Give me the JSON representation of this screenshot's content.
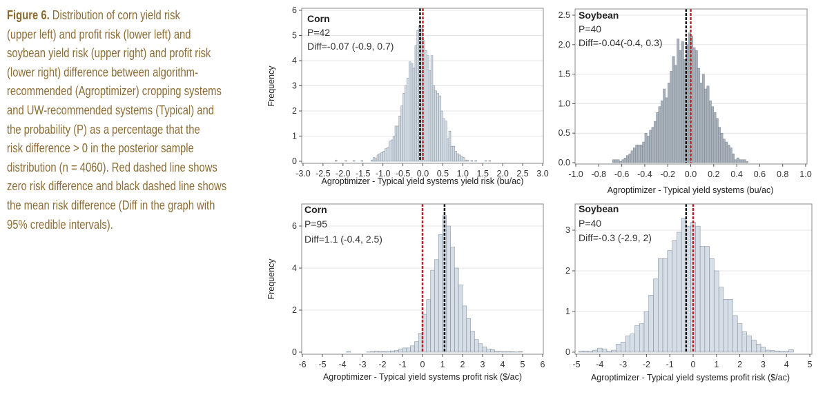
{
  "caption": {
    "label": "Figure 6.",
    "lines": [
      "Distribution of corn yield risk",
      "(upper left) and profit risk (lower left) and",
      "soybean yield risk (upper right) and profit risk",
      "(lower right) difference between algorithm-",
      "recommended (Agroptimizer) cropping systems",
      "and UW-recommended systems (Typical) and",
      "the probability (P) as a percentage that the",
      "risk difference > 0 in the posterior sample",
      "distribution (n = 4060). Red dashed line shows",
      "zero risk difference and black dashed line shows",
      "the mean risk difference (Diff in the graph with",
      "95% credible intervals)."
    ]
  },
  "colors": {
    "zero_line": "#c0202a",
    "mean_line": "#111111",
    "bar_fill_light": "#d5dde6",
    "bar_fill_dark": "#a9b1ba",
    "bar_stroke": "#7b8794",
    "caption": "#8c6d35"
  },
  "chart_data": [
    {
      "type": "bar",
      "position": "upper-left",
      "crop": "Corn",
      "p_label": "P=42",
      "diff_label": "Diff=-0.07 (-0.9, 0.7)",
      "xlabel": "Agroptimizer - Typical yield systems yield risk (bu/ac)",
      "ylabel": "Frequency",
      "xlim": [
        -3,
        3
      ],
      "ylim": [
        0,
        6
      ],
      "xticks": [
        "-3.0",
        "-2.5",
        "-2.0",
        "-1.5",
        "-1.0",
        "-0.5",
        "0.0",
        "0.5",
        "1.0",
        "1.5",
        "2.0",
        "2.5",
        "3.0"
      ],
      "yticks": [
        "0",
        "1",
        "2",
        "3",
        "4",
        "5",
        "6"
      ],
      "zero_line": 0,
      "mean_line": -0.07,
      "grid": "horizontal",
      "bin_width": 0.05,
      "bins": [
        [
          -2.2,
          0.05
        ],
        [
          -1.95,
          0.03
        ],
        [
          -1.75,
          0.03
        ],
        [
          -1.55,
          0.03
        ],
        [
          -1.3,
          0.05
        ],
        [
          -1.25,
          0.15
        ],
        [
          -1.2,
          0.1
        ],
        [
          -1.15,
          0.25
        ],
        [
          -1.1,
          0.3
        ],
        [
          -1.05,
          0.35
        ],
        [
          -1.0,
          0.4
        ],
        [
          -0.95,
          0.5
        ],
        [
          -0.9,
          0.55
        ],
        [
          -0.85,
          0.8
        ],
        [
          -0.8,
          0.85
        ],
        [
          -0.75,
          1.0
        ],
        [
          -0.7,
          1.4
        ],
        [
          -0.65,
          1.4
        ],
        [
          -0.6,
          1.8
        ],
        [
          -0.55,
          2.2
        ],
        [
          -0.5,
          2.7
        ],
        [
          -0.45,
          3.0
        ],
        [
          -0.4,
          3.3
        ],
        [
          -0.35,
          3.95
        ],
        [
          -0.3,
          3.9
        ],
        [
          -0.25,
          3.7
        ],
        [
          -0.2,
          4.6
        ],
        [
          -0.15,
          5.2
        ],
        [
          -0.1,
          5.4
        ],
        [
          -0.05,
          5.3
        ],
        [
          0.0,
          4.8
        ],
        [
          0.05,
          4.4
        ],
        [
          0.1,
          4.2
        ],
        [
          0.15,
          3.6
        ],
        [
          0.2,
          4.2
        ],
        [
          0.25,
          3.0
        ],
        [
          0.3,
          2.8
        ],
        [
          0.35,
          2.7
        ],
        [
          0.4,
          2.6
        ],
        [
          0.45,
          2.0
        ],
        [
          0.5,
          1.7
        ],
        [
          0.55,
          1.6
        ],
        [
          0.6,
          0.9
        ],
        [
          0.65,
          1.2
        ],
        [
          0.7,
          0.6
        ],
        [
          0.75,
          0.6
        ],
        [
          0.8,
          0.4
        ],
        [
          0.85,
          0.3
        ],
        [
          0.9,
          0.25
        ],
        [
          0.95,
          0.2
        ],
        [
          1.0,
          0.15
        ],
        [
          1.05,
          0.05
        ],
        [
          1.1,
          0.05
        ],
        [
          1.2,
          0.03
        ],
        [
          1.3,
          0.03
        ],
        [
          1.55,
          0.03
        ],
        [
          1.65,
          0.03
        ]
      ]
    },
    {
      "type": "bar",
      "position": "upper-right",
      "crop": "Soybean",
      "p_label": "P=40",
      "diff_label": "Diff=-0.04(-0.4, 0.3)",
      "xlabel": "Agroptimizer - Typical yield systems (bu/ac)",
      "ylabel": "",
      "xlim": [
        -1,
        1
      ],
      "ylim": [
        0,
        2.5
      ],
      "xticks": [
        "-1.0",
        "-0.8",
        "-0.6",
        "-0.4",
        "-0.2",
        "0.0",
        "0.2",
        "0.4",
        "0.6",
        "0.8",
        "1.0"
      ],
      "yticks": [
        "0.0",
        "0.5",
        "1.0",
        "1.5",
        "2.0",
        "2.5"
      ],
      "zero_line": 0,
      "mean_line": -0.04,
      "grid": "horizontal",
      "bin_width": 0.02,
      "bins": [
        [
          -0.68,
          0.05
        ],
        [
          -0.66,
          0.05
        ],
        [
          -0.64,
          0.05
        ],
        [
          -0.62,
          0.02
        ],
        [
          -0.6,
          0.05
        ],
        [
          -0.58,
          0.08
        ],
        [
          -0.56,
          0.12
        ],
        [
          -0.54,
          0.15
        ],
        [
          -0.52,
          0.2
        ],
        [
          -0.5,
          0.25
        ],
        [
          -0.48,
          0.3
        ],
        [
          -0.46,
          0.3
        ],
        [
          -0.44,
          0.3
        ],
        [
          -0.42,
          0.35
        ],
        [
          -0.4,
          0.5
        ],
        [
          -0.38,
          0.45
        ],
        [
          -0.36,
          0.55
        ],
        [
          -0.34,
          0.6
        ],
        [
          -0.32,
          0.7
        ],
        [
          -0.3,
          0.85
        ],
        [
          -0.28,
          0.95
        ],
        [
          -0.26,
          1.05
        ],
        [
          -0.24,
          1.25
        ],
        [
          -0.22,
          1.1
        ],
        [
          -0.2,
          1.35
        ],
        [
          -0.18,
          1.55
        ],
        [
          -0.16,
          1.8
        ],
        [
          -0.14,
          1.65
        ],
        [
          -0.12,
          2.1
        ],
        [
          -0.1,
          1.9
        ],
        [
          -0.08,
          2.05
        ],
        [
          -0.06,
          1.75
        ],
        [
          -0.04,
          2.0
        ],
        [
          -0.02,
          2.2
        ],
        [
          0.0,
          2.15
        ],
        [
          0.02,
          1.95
        ],
        [
          0.04,
          1.9
        ],
        [
          0.06,
          1.6
        ],
        [
          0.08,
          1.35
        ],
        [
          0.1,
          1.5
        ],
        [
          0.12,
          1.25
        ],
        [
          0.14,
          1.3
        ],
        [
          0.16,
          1.05
        ],
        [
          0.18,
          0.95
        ],
        [
          0.2,
          0.85
        ],
        [
          0.22,
          0.75
        ],
        [
          0.24,
          0.6
        ],
        [
          0.26,
          0.5
        ],
        [
          0.28,
          0.4
        ],
        [
          0.3,
          0.35
        ],
        [
          0.32,
          0.3
        ],
        [
          0.34,
          0.25
        ],
        [
          0.36,
          0.15
        ],
        [
          0.38,
          0.05
        ],
        [
          0.4,
          0.08
        ],
        [
          0.42,
          0.05
        ],
        [
          0.44,
          0.05
        ],
        [
          0.46,
          0.05
        ],
        [
          0.48,
          0.02
        ]
      ]
    },
    {
      "type": "bar",
      "position": "lower-left",
      "crop": "Corn",
      "p_label": "P=95",
      "diff_label": "Diff=1.1 (-0.4, 2.5)",
      "xlabel": "Agroptimizer - Typical yield systems profit risk ($/ac)",
      "ylabel": "Frequency",
      "xlim": [
        -6,
        6
      ],
      "ylim": [
        0,
        7
      ],
      "xticks": [
        "-6",
        "-5",
        "-4",
        "-3",
        "-2",
        "-1",
        "0",
        "1",
        "2",
        "3",
        "4",
        "5",
        "6"
      ],
      "yticks": [
        "0",
        "2",
        "4",
        "6"
      ],
      "zero_line": 0,
      "mean_line": 1.1,
      "grid": "horizontal",
      "bin_width": 0.2,
      "bins": [
        [
          -3.8,
          0.03
        ],
        [
          -2.8,
          0.01
        ],
        [
          -2.6,
          0.03
        ],
        [
          -2.4,
          0.05
        ],
        [
          -2.2,
          0.04
        ],
        [
          -2.0,
          0.02
        ],
        [
          -1.8,
          0.03
        ],
        [
          -1.6,
          0.06
        ],
        [
          -1.4,
          0.08
        ],
        [
          -1.2,
          0.15
        ],
        [
          -1.0,
          0.2
        ],
        [
          -0.8,
          0.2
        ],
        [
          -0.6,
          0.3
        ],
        [
          -0.4,
          0.5
        ],
        [
          -0.2,
          0.9
        ],
        [
          0.0,
          1.8
        ],
        [
          0.2,
          2.5
        ],
        [
          0.4,
          3.9
        ],
        [
          0.6,
          4.4
        ],
        [
          0.8,
          5.6
        ],
        [
          1.0,
          6.5
        ],
        [
          1.2,
          6.0
        ],
        [
          1.4,
          5.0
        ],
        [
          1.6,
          4.0
        ],
        [
          1.8,
          3.2
        ],
        [
          2.0,
          2.2
        ],
        [
          2.2,
          1.6
        ],
        [
          2.4,
          1.0
        ],
        [
          2.6,
          0.6
        ],
        [
          2.8,
          0.4
        ],
        [
          3.0,
          0.25
        ],
        [
          3.2,
          0.15
        ],
        [
          3.4,
          0.12
        ],
        [
          3.6,
          0.05
        ],
        [
          3.8,
          0.03
        ],
        [
          4.0,
          0.03
        ],
        [
          4.2,
          0.03
        ],
        [
          4.4,
          0.02
        ],
        [
          4.6,
          0.01
        ],
        [
          4.8,
          0.03
        ]
      ]
    },
    {
      "type": "bar",
      "position": "lower-right",
      "crop": "Soybean",
      "p_label": "P=40",
      "diff_label": "Diff=-0.3 (-2.9, 2)",
      "xlabel": "Agroptimizer - Typical yield systems profit risk ($/ac)",
      "ylabel": "",
      "xlim": [
        -5,
        5
      ],
      "ylim": [
        0,
        3.6
      ],
      "xticks": [
        "-5",
        "-4",
        "-3",
        "-2",
        "-1",
        "0",
        "1",
        "2",
        "3",
        "4",
        "5"
      ],
      "yticks": [
        "0",
        "1",
        "2",
        "3"
      ],
      "zero_line": 0,
      "mean_line": -0.3,
      "grid": "horizontal",
      "bin_width": 0.2,
      "bins": [
        [
          -4.9,
          0.03
        ],
        [
          -4.7,
          0.03
        ],
        [
          -4.5,
          0.02
        ],
        [
          -4.3,
          0.05
        ],
        [
          -4.1,
          0.1
        ],
        [
          -3.9,
          0.08
        ],
        [
          -3.7,
          0.03
        ],
        [
          -3.5,
          0.05
        ],
        [
          -3.3,
          0.2
        ],
        [
          -3.1,
          0.25
        ],
        [
          -2.9,
          0.4
        ],
        [
          -2.7,
          0.45
        ],
        [
          -2.5,
          0.65
        ],
        [
          -2.3,
          0.7
        ],
        [
          -2.1,
          1.0
        ],
        [
          -1.9,
          1.4
        ],
        [
          -1.7,
          1.8
        ],
        [
          -1.5,
          2.3
        ],
        [
          -1.3,
          2.3
        ],
        [
          -1.1,
          2.5
        ],
        [
          -0.9,
          2.75
        ],
        [
          -0.7,
          2.95
        ],
        [
          -0.5,
          3.3
        ],
        [
          -0.3,
          3.1
        ],
        [
          -0.1,
          3.2
        ],
        [
          0.1,
          3.1
        ],
        [
          0.3,
          2.6
        ],
        [
          0.5,
          2.6
        ],
        [
          0.7,
          2.3
        ],
        [
          0.9,
          2.0
        ],
        [
          1.1,
          1.6
        ],
        [
          1.3,
          1.3
        ],
        [
          1.5,
          1.3
        ],
        [
          1.7,
          0.9
        ],
        [
          1.9,
          0.7
        ],
        [
          2.1,
          0.5
        ],
        [
          2.3,
          0.4
        ],
        [
          2.5,
          0.3
        ],
        [
          2.7,
          0.2
        ],
        [
          2.9,
          0.12
        ],
        [
          3.1,
          0.05
        ],
        [
          3.3,
          0.04
        ],
        [
          3.5,
          0.03
        ],
        [
          3.7,
          0.02
        ],
        [
          3.9,
          0.02
        ],
        [
          4.1,
          0.06
        ]
      ]
    }
  ]
}
